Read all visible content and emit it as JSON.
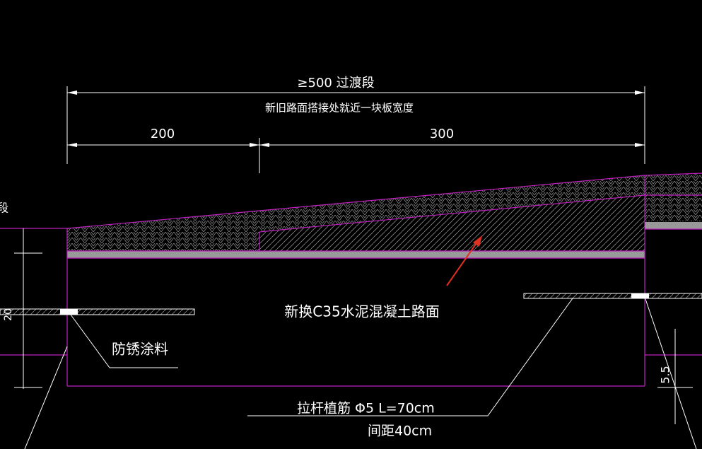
{
  "dimensions": {
    "total": "≥500  过渡段",
    "note": "新旧路面搭接处就近一块板宽度",
    "left": "200",
    "right": "300",
    "side_left": "20",
    "side_right": "5.5"
  },
  "labels": {
    "edge_cut": "段",
    "slab": "新换C35水泥混凝土路面",
    "coating": "防锈涂料",
    "tie_bar": "拉杆植筋  Φ5   L=70cm",
    "spacing": "间距40cm"
  }
}
